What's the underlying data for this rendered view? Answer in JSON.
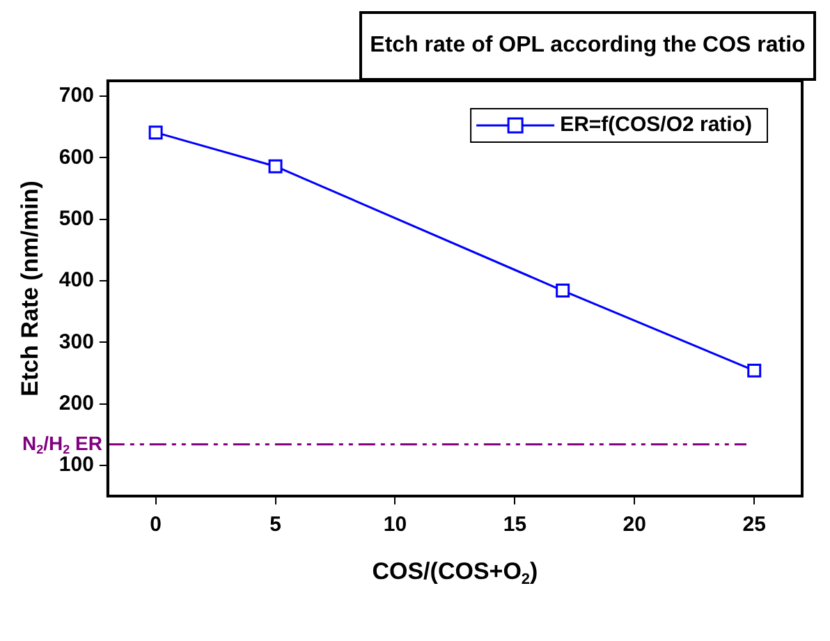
{
  "chart_data": {
    "type": "line",
    "title": "Etch rate of OPL according the COS ratio",
    "xlabel": "COS/(COS+O$_{2}$)",
    "ylabel": "Etch Rate (nm/min)",
    "x": [
      0,
      5,
      17,
      25
    ],
    "series": [
      {
        "name": "ER=f(COS/O2 ratio)",
        "color": "#0000ff",
        "values": [
          641,
          586,
          384,
          254
        ]
      }
    ],
    "xlim": [
      -2,
      27
    ],
    "xticks": [
      0,
      5,
      10,
      15,
      20,
      25
    ],
    "ylim": [
      50,
      725
    ],
    "yticks": [
      100,
      200,
      300,
      400,
      500,
      600,
      700
    ],
    "ref_lines": [
      {
        "axis": "y",
        "value": 134,
        "label": "N$_{2}$/H$_{2}$ ER",
        "color": "#800080",
        "line_style": "dashed"
      }
    ],
    "grid": false,
    "legend": "top right",
    "marker": "square",
    "line_style": "solid"
  }
}
